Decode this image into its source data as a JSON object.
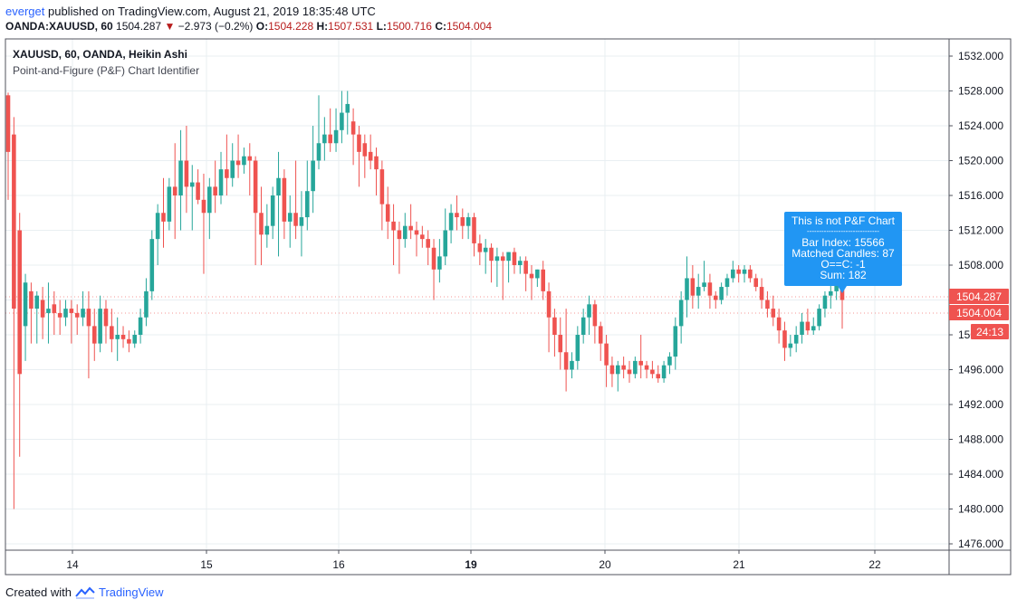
{
  "header": {
    "user": "everget",
    "published_text": " published on TradingView.com, August 21, 2019 18:35:48 UTC"
  },
  "quote": {
    "symbol": "OANDA:XAUUSD, 60",
    "last": "1504.287",
    "arrow": "▼",
    "change": "−2.973 (−0.2%)",
    "o_label": "O:",
    "o": "1504.228",
    "h_label": "H:",
    "h": "1507.531",
    "l_label": "L:",
    "l": "1500.716",
    "c_label": "C:",
    "c": "1504.004"
  },
  "legend": {
    "series_title": "XAUUSD, 60, OANDA, Heikin Ashi",
    "indicator": "Point-and-Figure (P&F) Chart Identifier"
  },
  "footer": {
    "created_with": "Created with",
    "brand": "TradingView"
  },
  "colors": {
    "up": "#26a69a",
    "down": "#ef5350",
    "grid": "#e9eff2",
    "axis_text": "#131722",
    "tooltip_bg": "#2196f3",
    "price_label_bg": "#ef5350"
  },
  "chart_data": {
    "type": "candlestick",
    "style": "Heikin Ashi",
    "ylim": [
      1474,
      1535
    ],
    "y_ticks": [
      "1532.000",
      "1528.000",
      "1524.000",
      "1520.000",
      "1516.000",
      "1512.000",
      "1508.000",
      "1504.000",
      "1500.000",
      "1496.000",
      "1492.000",
      "1488.000",
      "1484.000",
      "1480.000",
      "1476.000"
    ],
    "x_ticks": [
      {
        "label": "14",
        "bold": false
      },
      {
        "label": "15",
        "bold": false
      },
      {
        "label": "16",
        "bold": false
      },
      {
        "label": "19",
        "bold": true
      },
      {
        "label": "20",
        "bold": false
      },
      {
        "label": "21",
        "bold": false
      },
      {
        "label": "22",
        "bold": false
      }
    ],
    "price_labels": [
      {
        "text": "1504.287",
        "value": 1504.287
      },
      {
        "text": "1504.004",
        "value": 1504.004
      },
      {
        "text": "24:13",
        "value": 1502.3
      }
    ],
    "tooltip": {
      "lines": [
        "This is not P&F Chart",
        "------------------------------",
        "Bar Index: 15566",
        "Matched Candles: 87",
        "O==C: -1",
        "Sum: 182"
      ]
    },
    "candles": [
      {
        "o": 1527.5,
        "h": 1527.8,
        "l": 1515.5,
        "c": 1521.0
      },
      {
        "o": 1523.0,
        "h": 1525.0,
        "l": 1480.0,
        "c": 1503.0
      },
      {
        "o": 1512.0,
        "h": 1514.0,
        "l": 1486.0,
        "c": 1495.5
      },
      {
        "o": 1501.0,
        "h": 1507.0,
        "l": 1497.0,
        "c": 1506.0
      },
      {
        "o": 1505.0,
        "h": 1506.0,
        "l": 1499.0,
        "c": 1503.0
      },
      {
        "o": 1503.0,
        "h": 1505.0,
        "l": 1499.0,
        "c": 1504.5
      },
      {
        "o": 1504.0,
        "h": 1505.5,
        "l": 1499.5,
        "c": 1502.0
      },
      {
        "o": 1502.5,
        "h": 1506.0,
        "l": 1499.0,
        "c": 1503.0
      },
      {
        "o": 1503.5,
        "h": 1505.0,
        "l": 1500.0,
        "c": 1502.5
      },
      {
        "o": 1502.5,
        "h": 1504.0,
        "l": 1500.0,
        "c": 1502.0
      },
      {
        "o": 1502.0,
        "h": 1504.0,
        "l": 1501.0,
        "c": 1503.0
      },
      {
        "o": 1503.0,
        "h": 1504.0,
        "l": 1499.0,
        "c": 1502.5
      },
      {
        "o": 1502.5,
        "h": 1503.5,
        "l": 1500.0,
        "c": 1502.0
      },
      {
        "o": 1502.0,
        "h": 1505.0,
        "l": 1501.0,
        "c": 1503.0
      },
      {
        "o": 1503.0,
        "h": 1505.0,
        "l": 1495.0,
        "c": 1501.0
      },
      {
        "o": 1501.0,
        "h": 1503.0,
        "l": 1497.0,
        "c": 1499.0
      },
      {
        "o": 1499.0,
        "h": 1504.5,
        "l": 1498.0,
        "c": 1503.0
      },
      {
        "o": 1503.0,
        "h": 1504.0,
        "l": 1499.0,
        "c": 1501.0
      },
      {
        "o": 1501.0,
        "h": 1503.0,
        "l": 1498.0,
        "c": 1499.5
      },
      {
        "o": 1499.5,
        "h": 1502.0,
        "l": 1497.0,
        "c": 1500.0
      },
      {
        "o": 1500.0,
        "h": 1501.0,
        "l": 1498.5,
        "c": 1499.5
      },
      {
        "o": 1499.5,
        "h": 1500.5,
        "l": 1498.0,
        "c": 1499.0
      },
      {
        "o": 1499.0,
        "h": 1500.5,
        "l": 1498.5,
        "c": 1500.0
      },
      {
        "o": 1500.0,
        "h": 1503.0,
        "l": 1499.0,
        "c": 1502.0
      },
      {
        "o": 1502.0,
        "h": 1506.5,
        "l": 1501.0,
        "c": 1505.0
      },
      {
        "o": 1505.0,
        "h": 1512.0,
        "l": 1504.0,
        "c": 1511.0
      },
      {
        "o": 1511.0,
        "h": 1515.0,
        "l": 1508.0,
        "c": 1514.0
      },
      {
        "o": 1514.0,
        "h": 1518.0,
        "l": 1510.0,
        "c": 1513.0
      },
      {
        "o": 1513.0,
        "h": 1518.0,
        "l": 1512.0,
        "c": 1517.0
      },
      {
        "o": 1517.0,
        "h": 1522.0,
        "l": 1511.0,
        "c": 1516.0
      },
      {
        "o": 1516.0,
        "h": 1523.5,
        "l": 1512.0,
        "c": 1520.0
      },
      {
        "o": 1520.0,
        "h": 1524.0,
        "l": 1514.0,
        "c": 1517.0
      },
      {
        "o": 1517.0,
        "h": 1519.5,
        "l": 1512.0,
        "c": 1517.5
      },
      {
        "o": 1517.5,
        "h": 1519.0,
        "l": 1515.0,
        "c": 1515.5
      },
      {
        "o": 1515.5,
        "h": 1518.5,
        "l": 1507.0,
        "c": 1514.0
      },
      {
        "o": 1514.0,
        "h": 1518.0,
        "l": 1511.0,
        "c": 1517.0
      },
      {
        "o": 1517.0,
        "h": 1520.0,
        "l": 1514.0,
        "c": 1516.0
      },
      {
        "o": 1516.0,
        "h": 1521.0,
        "l": 1515.0,
        "c": 1519.0
      },
      {
        "o": 1519.0,
        "h": 1523.0,
        "l": 1516.0,
        "c": 1518.0
      },
      {
        "o": 1518.0,
        "h": 1522.0,
        "l": 1517.0,
        "c": 1520.0
      },
      {
        "o": 1520.0,
        "h": 1523.0,
        "l": 1518.0,
        "c": 1519.5
      },
      {
        "o": 1519.5,
        "h": 1521.5,
        "l": 1518.5,
        "c": 1520.5
      },
      {
        "o": 1520.5,
        "h": 1522.0,
        "l": 1516.0,
        "c": 1520.0
      },
      {
        "o": 1520.0,
        "h": 1520.5,
        "l": 1508.0,
        "c": 1514.0
      },
      {
        "o": 1514.0,
        "h": 1517.0,
        "l": 1508.0,
        "c": 1511.5
      },
      {
        "o": 1511.5,
        "h": 1515.0,
        "l": 1510.0,
        "c": 1512.5
      },
      {
        "o": 1512.5,
        "h": 1517.0,
        "l": 1511.0,
        "c": 1516.0
      },
      {
        "o": 1516.0,
        "h": 1521.0,
        "l": 1509.0,
        "c": 1518.0
      },
      {
        "o": 1518.0,
        "h": 1519.0,
        "l": 1511.0,
        "c": 1513.0
      },
      {
        "o": 1513.0,
        "h": 1516.0,
        "l": 1510.0,
        "c": 1514.0
      },
      {
        "o": 1514.0,
        "h": 1520.0,
        "l": 1511.0,
        "c": 1512.5
      },
      {
        "o": 1512.5,
        "h": 1516.5,
        "l": 1509.0,
        "c": 1513.5
      },
      {
        "o": 1513.5,
        "h": 1520.0,
        "l": 1512.0,
        "c": 1516.5
      },
      {
        "o": 1516.5,
        "h": 1524.0,
        "l": 1514.0,
        "c": 1520.0
      },
      {
        "o": 1520.0,
        "h": 1527.5,
        "l": 1519.0,
        "c": 1522.0
      },
      {
        "o": 1522.0,
        "h": 1525.0,
        "l": 1520.0,
        "c": 1523.0
      },
      {
        "o": 1523.0,
        "h": 1526.0,
        "l": 1521.0,
        "c": 1522.0
      },
      {
        "o": 1522.0,
        "h": 1526.0,
        "l": 1521.0,
        "c": 1523.5
      },
      {
        "o": 1523.5,
        "h": 1528.0,
        "l": 1522.0,
        "c": 1525.5
      },
      {
        "o": 1525.5,
        "h": 1528.0,
        "l": 1523.0,
        "c": 1526.5
      },
      {
        "o": 1524.5,
        "h": 1526.0,
        "l": 1519.5,
        "c": 1523.0
      },
      {
        "o": 1523.0,
        "h": 1524.0,
        "l": 1517.0,
        "c": 1521.0
      },
      {
        "o": 1522.0,
        "h": 1523.0,
        "l": 1518.0,
        "c": 1520.5
      },
      {
        "o": 1521.0,
        "h": 1523.0,
        "l": 1519.0,
        "c": 1520.0
      },
      {
        "o": 1520.5,
        "h": 1521.5,
        "l": 1516.0,
        "c": 1519.0
      },
      {
        "o": 1519.0,
        "h": 1520.0,
        "l": 1512.0,
        "c": 1515.0
      },
      {
        "o": 1515.0,
        "h": 1517.0,
        "l": 1511.0,
        "c": 1513.0
      },
      {
        "o": 1513.0,
        "h": 1515.0,
        "l": 1508.0,
        "c": 1512.0
      },
      {
        "o": 1512.0,
        "h": 1513.0,
        "l": 1507.0,
        "c": 1511.0
      },
      {
        "o": 1511.0,
        "h": 1514.0,
        "l": 1510.0,
        "c": 1512.5
      },
      {
        "o": 1512.5,
        "h": 1515.0,
        "l": 1511.0,
        "c": 1512.0
      },
      {
        "o": 1512.0,
        "h": 1513.0,
        "l": 1509.0,
        "c": 1511.5
      },
      {
        "o": 1511.5,
        "h": 1512.5,
        "l": 1510.0,
        "c": 1511.0
      },
      {
        "o": 1511.0,
        "h": 1512.0,
        "l": 1508.0,
        "c": 1510.0
      },
      {
        "o": 1510.0,
        "h": 1511.0,
        "l": 1504.0,
        "c": 1507.5
      },
      {
        "o": 1507.5,
        "h": 1511.0,
        "l": 1506.0,
        "c": 1509.0
      },
      {
        "o": 1509.0,
        "h": 1514.5,
        "l": 1508.0,
        "c": 1512.0
      },
      {
        "o": 1512.0,
        "h": 1515.0,
        "l": 1510.5,
        "c": 1514.0
      },
      {
        "o": 1514.0,
        "h": 1516.0,
        "l": 1512.0,
        "c": 1513.5
      },
      {
        "o": 1513.5,
        "h": 1514.5,
        "l": 1511.0,
        "c": 1512.5
      },
      {
        "o": 1512.5,
        "h": 1514.0,
        "l": 1511.0,
        "c": 1513.5
      },
      {
        "o": 1513.5,
        "h": 1514.0,
        "l": 1509.0,
        "c": 1510.5
      },
      {
        "o": 1510.5,
        "h": 1511.5,
        "l": 1508.0,
        "c": 1509.5
      },
      {
        "o": 1509.5,
        "h": 1511.0,
        "l": 1507.0,
        "c": 1510.0
      },
      {
        "o": 1510.0,
        "h": 1510.5,
        "l": 1506.0,
        "c": 1508.5
      },
      {
        "o": 1508.5,
        "h": 1510.0,
        "l": 1505.5,
        "c": 1509.0
      },
      {
        "o": 1509.0,
        "h": 1509.5,
        "l": 1504.0,
        "c": 1508.5
      },
      {
        "o": 1508.5,
        "h": 1509.5,
        "l": 1506.0,
        "c": 1509.5
      },
      {
        "o": 1509.5,
        "h": 1510.0,
        "l": 1507.0,
        "c": 1508.0
      },
      {
        "o": 1508.0,
        "h": 1509.0,
        "l": 1507.0,
        "c": 1508.5
      },
      {
        "o": 1508.5,
        "h": 1509.0,
        "l": 1505.0,
        "c": 1507.0
      },
      {
        "o": 1507.0,
        "h": 1508.0,
        "l": 1504.0,
        "c": 1506.5
      },
      {
        "o": 1506.5,
        "h": 1507.5,
        "l": 1505.5,
        "c": 1507.5
      },
      {
        "o": 1507.5,
        "h": 1508.5,
        "l": 1504.0,
        "c": 1505.0
      },
      {
        "o": 1505.0,
        "h": 1506.0,
        "l": 1498.0,
        "c": 1502.0
      },
      {
        "o": 1502.0,
        "h": 1503.0,
        "l": 1497.5,
        "c": 1500.0
      },
      {
        "o": 1500.0,
        "h": 1502.0,
        "l": 1496.0,
        "c": 1498.0
      },
      {
        "o": 1498.0,
        "h": 1503.0,
        "l": 1493.5,
        "c": 1496.0
      },
      {
        "o": 1496.0,
        "h": 1498.0,
        "l": 1495.0,
        "c": 1497.0
      },
      {
        "o": 1497.0,
        "h": 1501.0,
        "l": 1496.0,
        "c": 1500.0
      },
      {
        "o": 1500.0,
        "h": 1503.0,
        "l": 1499.0,
        "c": 1502.0
      },
      {
        "o": 1502.0,
        "h": 1504.5,
        "l": 1500.0,
        "c": 1503.5
      },
      {
        "o": 1503.5,
        "h": 1504.0,
        "l": 1499.0,
        "c": 1501.0
      },
      {
        "o": 1501.0,
        "h": 1501.5,
        "l": 1497.0,
        "c": 1499.0
      },
      {
        "o": 1499.0,
        "h": 1500.0,
        "l": 1494.0,
        "c": 1496.5
      },
      {
        "o": 1496.5,
        "h": 1497.5,
        "l": 1494.0,
        "c": 1495.5
      },
      {
        "o": 1495.5,
        "h": 1497.0,
        "l": 1493.5,
        "c": 1496.5
      },
      {
        "o": 1496.5,
        "h": 1497.5,
        "l": 1495.0,
        "c": 1496.0
      },
      {
        "o": 1496.0,
        "h": 1497.0,
        "l": 1494.5,
        "c": 1495.5
      },
      {
        "o": 1495.5,
        "h": 1497.5,
        "l": 1495.0,
        "c": 1497.0
      },
      {
        "o": 1497.0,
        "h": 1500.0,
        "l": 1495.0,
        "c": 1496.5
      },
      {
        "o": 1496.5,
        "h": 1497.0,
        "l": 1495.0,
        "c": 1496.0
      },
      {
        "o": 1496.0,
        "h": 1497.0,
        "l": 1495.0,
        "c": 1495.5
      },
      {
        "o": 1495.5,
        "h": 1496.5,
        "l": 1494.5,
        "c": 1495.0
      },
      {
        "o": 1495.0,
        "h": 1497.0,
        "l": 1494.5,
        "c": 1496.5
      },
      {
        "o": 1496.5,
        "h": 1498.0,
        "l": 1495.5,
        "c": 1497.5
      },
      {
        "o": 1497.5,
        "h": 1502.0,
        "l": 1496.0,
        "c": 1501.0
      },
      {
        "o": 1501.0,
        "h": 1505.0,
        "l": 1499.0,
        "c": 1504.0
      },
      {
        "o": 1504.0,
        "h": 1509.0,
        "l": 1502.0,
        "c": 1506.5
      },
      {
        "o": 1506.5,
        "h": 1508.0,
        "l": 1503.0,
        "c": 1504.5
      },
      {
        "o": 1504.5,
        "h": 1507.0,
        "l": 1503.0,
        "c": 1505.5
      },
      {
        "o": 1505.5,
        "h": 1508.5,
        "l": 1505.0,
        "c": 1506.0
      },
      {
        "o": 1506.0,
        "h": 1507.0,
        "l": 1503.0,
        "c": 1504.5
      },
      {
        "o": 1504.5,
        "h": 1505.0,
        "l": 1503.0,
        "c": 1504.0
      },
      {
        "o": 1504.0,
        "h": 1506.0,
        "l": 1503.5,
        "c": 1505.5
      },
      {
        "o": 1505.5,
        "h": 1507.0,
        "l": 1504.5,
        "c": 1506.5
      },
      {
        "o": 1506.5,
        "h": 1508.5,
        "l": 1506.0,
        "c": 1507.5
      },
      {
        "o": 1507.5,
        "h": 1508.0,
        "l": 1506.0,
        "c": 1507.0
      },
      {
        "o": 1507.0,
        "h": 1508.0,
        "l": 1506.0,
        "c": 1507.5
      },
      {
        "o": 1507.5,
        "h": 1508.0,
        "l": 1506.0,
        "c": 1506.5
      },
      {
        "o": 1506.5,
        "h": 1507.0,
        "l": 1505.0,
        "c": 1505.5
      },
      {
        "o": 1505.5,
        "h": 1506.5,
        "l": 1503.0,
        "c": 1504.0
      },
      {
        "o": 1504.0,
        "h": 1505.0,
        "l": 1502.0,
        "c": 1503.0
      },
      {
        "o": 1503.0,
        "h": 1504.5,
        "l": 1501.0,
        "c": 1502.0
      },
      {
        "o": 1502.0,
        "h": 1503.0,
        "l": 1499.0,
        "c": 1500.5
      },
      {
        "o": 1500.5,
        "h": 1501.5,
        "l": 1497.0,
        "c": 1498.5
      },
      {
        "o": 1498.5,
        "h": 1500.0,
        "l": 1497.5,
        "c": 1499.0
      },
      {
        "o": 1499.0,
        "h": 1501.0,
        "l": 1498.0,
        "c": 1500.0
      },
      {
        "o": 1500.0,
        "h": 1502.5,
        "l": 1499.0,
        "c": 1501.5
      },
      {
        "o": 1501.5,
        "h": 1503.0,
        "l": 1500.0,
        "c": 1500.5
      },
      {
        "o": 1500.5,
        "h": 1502.0,
        "l": 1500.0,
        "c": 1501.0
      },
      {
        "o": 1501.0,
        "h": 1503.5,
        "l": 1500.5,
        "c": 1503.0
      },
      {
        "o": 1503.0,
        "h": 1505.0,
        "l": 1502.0,
        "c": 1504.5
      },
      {
        "o": 1504.5,
        "h": 1506.0,
        "l": 1503.0,
        "c": 1505.0
      },
      {
        "o": 1505.0,
        "h": 1507.0,
        "l": 1504.0,
        "c": 1506.0
      },
      {
        "o": 1506.0,
        "h": 1507.5,
        "l": 1500.7,
        "c": 1504.0
      }
    ]
  }
}
